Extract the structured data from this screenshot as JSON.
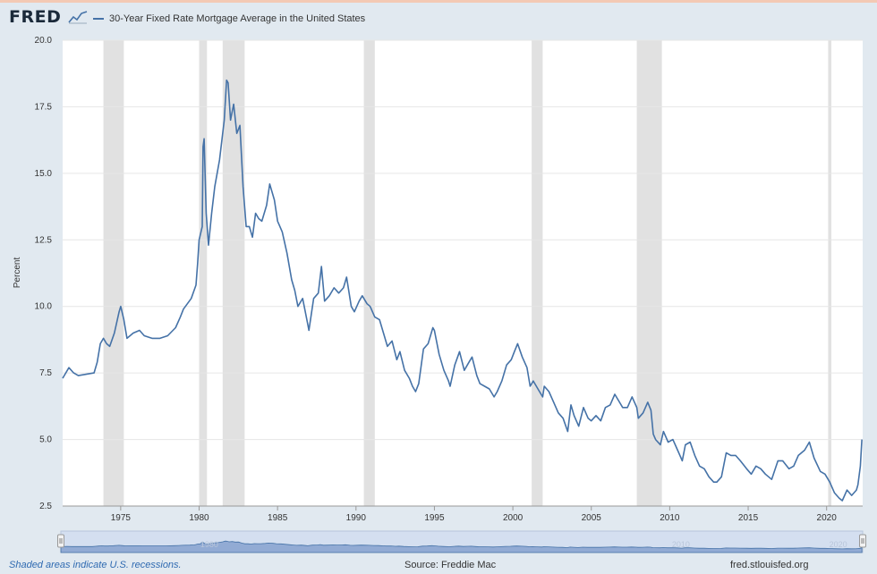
{
  "app": {
    "logo": "FRED",
    "logo_icon": "chart-line-icon"
  },
  "chart_data": {
    "type": "line",
    "title": "",
    "series": [
      {
        "name": "30-Year Fixed Rate Mortgage Average in the United States",
        "color": "#4572a7",
        "points": [
          [
            1971.3,
            7.3
          ],
          [
            1971.7,
            7.7
          ],
          [
            1972.0,
            7.5
          ],
          [
            1972.3,
            7.4
          ],
          [
            1972.8,
            7.45
          ],
          [
            1973.3,
            7.5
          ],
          [
            1973.5,
            7.9
          ],
          [
            1973.7,
            8.6
          ],
          [
            1973.9,
            8.8
          ],
          [
            1974.1,
            8.6
          ],
          [
            1974.3,
            8.5
          ],
          [
            1974.6,
            9.0
          ],
          [
            1974.9,
            9.8
          ],
          [
            1975.0,
            10.0
          ],
          [
            1975.2,
            9.5
          ],
          [
            1975.4,
            8.8
          ],
          [
            1975.8,
            9.0
          ],
          [
            1976.2,
            9.1
          ],
          [
            1976.5,
            8.9
          ],
          [
            1977.0,
            8.8
          ],
          [
            1977.5,
            8.8
          ],
          [
            1978.0,
            8.9
          ],
          [
            1978.5,
            9.2
          ],
          [
            1978.8,
            9.6
          ],
          [
            1979.0,
            9.9
          ],
          [
            1979.5,
            10.3
          ],
          [
            1979.8,
            10.8
          ],
          [
            1979.9,
            11.6
          ],
          [
            1980.0,
            12.5
          ],
          [
            1980.2,
            13.0
          ],
          [
            1980.25,
            16.0
          ],
          [
            1980.32,
            16.3
          ],
          [
            1980.45,
            13.5
          ],
          [
            1980.6,
            12.3
          ],
          [
            1980.8,
            13.5
          ],
          [
            1981.0,
            14.5
          ],
          [
            1981.3,
            15.5
          ],
          [
            1981.6,
            17.0
          ],
          [
            1981.75,
            18.5
          ],
          [
            1981.85,
            18.4
          ],
          [
            1982.0,
            17.0
          ],
          [
            1982.2,
            17.6
          ],
          [
            1982.4,
            16.5
          ],
          [
            1982.6,
            16.8
          ],
          [
            1982.8,
            14.5
          ],
          [
            1983.0,
            13.0
          ],
          [
            1983.2,
            13.0
          ],
          [
            1983.4,
            12.6
          ],
          [
            1983.6,
            13.5
          ],
          [
            1983.8,
            13.3
          ],
          [
            1984.0,
            13.2
          ],
          [
            1984.3,
            13.8
          ],
          [
            1984.5,
            14.6
          ],
          [
            1984.8,
            14.0
          ],
          [
            1985.0,
            13.2
          ],
          [
            1985.3,
            12.8
          ],
          [
            1985.6,
            12.0
          ],
          [
            1985.9,
            11.0
          ],
          [
            1986.1,
            10.6
          ],
          [
            1986.3,
            10.0
          ],
          [
            1986.6,
            10.3
          ],
          [
            1986.9,
            9.4
          ],
          [
            1987.0,
            9.1
          ],
          [
            1987.3,
            10.3
          ],
          [
            1987.6,
            10.5
          ],
          [
            1987.8,
            11.5
          ],
          [
            1988.0,
            10.2
          ],
          [
            1988.3,
            10.4
          ],
          [
            1988.6,
            10.7
          ],
          [
            1988.9,
            10.5
          ],
          [
            1989.2,
            10.7
          ],
          [
            1989.4,
            11.1
          ],
          [
            1989.7,
            10.0
          ],
          [
            1989.9,
            9.8
          ],
          [
            1990.2,
            10.2
          ],
          [
            1990.4,
            10.4
          ],
          [
            1990.7,
            10.1
          ],
          [
            1990.9,
            10.0
          ],
          [
            1991.2,
            9.6
          ],
          [
            1991.5,
            9.5
          ],
          [
            1991.8,
            8.9
          ],
          [
            1992.0,
            8.5
          ],
          [
            1992.3,
            8.7
          ],
          [
            1992.6,
            8.0
          ],
          [
            1992.8,
            8.3
          ],
          [
            1993.1,
            7.6
          ],
          [
            1993.4,
            7.3
          ],
          [
            1993.6,
            7.0
          ],
          [
            1993.8,
            6.8
          ],
          [
            1994.0,
            7.1
          ],
          [
            1994.3,
            8.4
          ],
          [
            1994.6,
            8.6
          ],
          [
            1994.9,
            9.2
          ],
          [
            1995.0,
            9.1
          ],
          [
            1995.3,
            8.2
          ],
          [
            1995.6,
            7.6
          ],
          [
            1995.9,
            7.2
          ],
          [
            1996.0,
            7.0
          ],
          [
            1996.3,
            7.8
          ],
          [
            1996.6,
            8.3
          ],
          [
            1996.9,
            7.6
          ],
          [
            1997.2,
            7.9
          ],
          [
            1997.4,
            8.1
          ],
          [
            1997.7,
            7.4
          ],
          [
            1997.9,
            7.1
          ],
          [
            1998.2,
            7.0
          ],
          [
            1998.5,
            6.9
          ],
          [
            1998.8,
            6.6
          ],
          [
            1999.0,
            6.8
          ],
          [
            1999.3,
            7.2
          ],
          [
            1999.6,
            7.8
          ],
          [
            1999.9,
            8.0
          ],
          [
            2000.1,
            8.3
          ],
          [
            2000.3,
            8.6
          ],
          [
            2000.6,
            8.1
          ],
          [
            2000.9,
            7.7
          ],
          [
            2001.1,
            7.0
          ],
          [
            2001.3,
            7.2
          ],
          [
            2001.6,
            6.9
          ],
          [
            2001.9,
            6.6
          ],
          [
            2002.0,
            7.0
          ],
          [
            2002.3,
            6.8
          ],
          [
            2002.6,
            6.4
          ],
          [
            2002.9,
            6.0
          ],
          [
            2003.2,
            5.8
          ],
          [
            2003.5,
            5.3
          ],
          [
            2003.7,
            6.3
          ],
          [
            2003.9,
            5.9
          ],
          [
            2004.2,
            5.5
          ],
          [
            2004.5,
            6.2
          ],
          [
            2004.8,
            5.8
          ],
          [
            2005.0,
            5.7
          ],
          [
            2005.3,
            5.9
          ],
          [
            2005.6,
            5.7
          ],
          [
            2005.9,
            6.2
          ],
          [
            2006.2,
            6.3
          ],
          [
            2006.5,
            6.7
          ],
          [
            2006.8,
            6.4
          ],
          [
            2007.0,
            6.2
          ],
          [
            2007.3,
            6.2
          ],
          [
            2007.6,
            6.6
          ],
          [
            2007.9,
            6.2
          ],
          [
            2008.0,
            5.8
          ],
          [
            2008.3,
            6.0
          ],
          [
            2008.6,
            6.4
          ],
          [
            2008.8,
            6.1
          ],
          [
            2008.95,
            5.2
          ],
          [
            2009.1,
            5.0
          ],
          [
            2009.4,
            4.8
          ],
          [
            2009.6,
            5.3
          ],
          [
            2009.9,
            4.9
          ],
          [
            2010.2,
            5.0
          ],
          [
            2010.5,
            4.6
          ],
          [
            2010.8,
            4.2
          ],
          [
            2011.0,
            4.8
          ],
          [
            2011.3,
            4.9
          ],
          [
            2011.6,
            4.4
          ],
          [
            2011.9,
            4.0
          ],
          [
            2012.2,
            3.9
          ],
          [
            2012.5,
            3.6
          ],
          [
            2012.8,
            3.4
          ],
          [
            2013.0,
            3.4
          ],
          [
            2013.3,
            3.6
          ],
          [
            2013.6,
            4.5
          ],
          [
            2013.9,
            4.4
          ],
          [
            2014.2,
            4.4
          ],
          [
            2014.5,
            4.2
          ],
          [
            2014.9,
            3.9
          ],
          [
            2015.2,
            3.7
          ],
          [
            2015.5,
            4.0
          ],
          [
            2015.8,
            3.9
          ],
          [
            2016.1,
            3.7
          ],
          [
            2016.5,
            3.5
          ],
          [
            2016.9,
            4.2
          ],
          [
            2017.2,
            4.2
          ],
          [
            2017.6,
            3.9
          ],
          [
            2017.9,
            4.0
          ],
          [
            2018.2,
            4.4
          ],
          [
            2018.6,
            4.6
          ],
          [
            2018.9,
            4.9
          ],
          [
            2019.2,
            4.3
          ],
          [
            2019.6,
            3.8
          ],
          [
            2019.9,
            3.7
          ],
          [
            2020.2,
            3.4
          ],
          [
            2020.5,
            3.0
          ],
          [
            2020.8,
            2.8
          ],
          [
            2021.0,
            2.7
          ],
          [
            2021.3,
            3.1
          ],
          [
            2021.6,
            2.9
          ],
          [
            2021.9,
            3.1
          ],
          [
            2022.0,
            3.3
          ],
          [
            2022.15,
            4.0
          ],
          [
            2022.25,
            5.0
          ]
        ]
      }
    ],
    "ylabel": "Percent",
    "xlabel": "",
    "xlim": [
      1971.3,
      2022.3
    ],
    "ylim": [
      2.5,
      20.0
    ],
    "x_ticks": [
      1975,
      1980,
      1985,
      1990,
      1995,
      2000,
      2005,
      2010,
      2015,
      2020
    ],
    "y_ticks": [
      "2.5",
      "5.0",
      "7.5",
      "10.0",
      "12.5",
      "15.0",
      "17.5",
      "20.0"
    ],
    "grid": true,
    "legend": "top-left",
    "recessions": [
      [
        1973.9,
        1975.2
      ],
      [
        1980.0,
        1980.5
      ],
      [
        1981.5,
        1982.9
      ],
      [
        1990.5,
        1991.2
      ],
      [
        2001.2,
        2001.9
      ],
      [
        2007.9,
        2009.5
      ],
      [
        2020.1,
        2020.3
      ]
    ],
    "navigator_ticks": [
      "1980",
      "2010",
      "2020"
    ],
    "colors": {
      "line": "#4572a7",
      "recession": "#e1e1e1",
      "grid": "#e6e6e6",
      "background": "#e1e9f0"
    }
  },
  "footer": {
    "recession_note": "Shaded areas indicate U.S. recessions.",
    "source": "Source: Freddie Mac",
    "url": "fred.stlouisfed.org"
  }
}
